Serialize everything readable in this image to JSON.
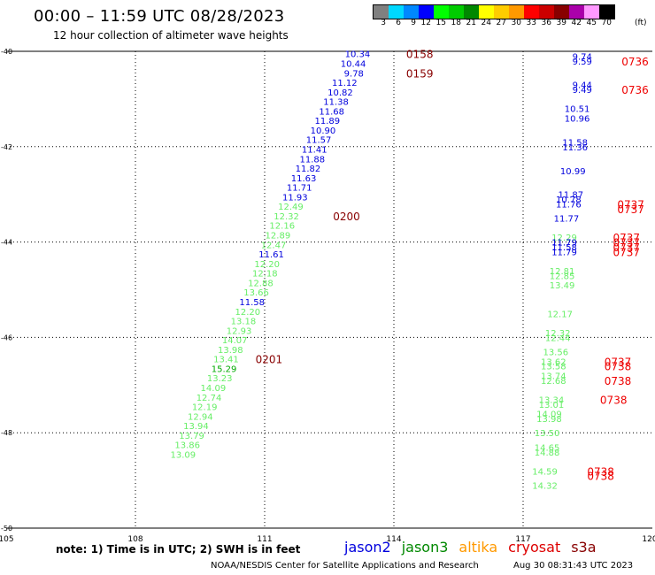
{
  "header": {
    "title": "00:00 – 11:59 UTC 08/28/2023",
    "subtitle": "12 hour collection of altimeter wave heights"
  },
  "colorbar": {
    "unit": "(ft)",
    "labels": [
      "3",
      "6",
      "9",
      "12",
      "15",
      "18",
      "21",
      "24",
      "27",
      "30",
      "33",
      "36",
      "39",
      "42",
      "45",
      "70"
    ],
    "colors": [
      "#808080",
      "#00d8ff",
      "#0088ff",
      "#0000ff",
      "#00ff00",
      "#00cc00",
      "#008800",
      "#ffff00",
      "#ffcc00",
      "#ff9900",
      "#ff0000",
      "#cc0000",
      "#880000",
      "#aa00aa",
      "#ff99ff",
      "#000000"
    ]
  },
  "footer": {
    "note": "note:  1) Time is in UTC; 2) SWH is in feet",
    "credit": "NOAA/NESDIS Center for Satellite Applications and Research",
    "created": "Aug 30 08:31:43 UTC 2023"
  },
  "legend": [
    {
      "name": "jason2",
      "color": "#0000dd"
    },
    {
      "name": "jason3",
      "color": "#008800"
    },
    {
      "name": "altika",
      "color": "#ff9900"
    },
    {
      "name": "cryosat",
      "color": "#dd0000"
    },
    {
      "name": "s3a",
      "color": "#880000"
    }
  ],
  "chart_data": {
    "type": "scatter",
    "x_ticks": [
      "105",
      "108",
      "111",
      "114",
      "117",
      "120"
    ],
    "y_ticks": [
      "-40",
      "-42",
      "-44",
      "-46",
      "-48",
      "-50"
    ],
    "xlim": [
      105,
      120
    ],
    "ylim": [
      -50,
      -40
    ],
    "grid": true,
    "series": [
      {
        "name": "swh_track1",
        "points": [
          {
            "x": 113.45,
            "y": -40.05,
            "label": "10.34",
            "color": "#0000dd"
          },
          {
            "x": 113.35,
            "y": -40.25,
            "label": "10.44",
            "color": "#0000dd"
          },
          {
            "x": 113.3,
            "y": -40.45,
            "label": "9.78",
            "color": "#0000dd"
          },
          {
            "x": 113.15,
            "y": -40.65,
            "label": "11.12",
            "color": "#0000dd"
          },
          {
            "x": 113.05,
            "y": -40.85,
            "label": "10.82",
            "color": "#0000dd"
          },
          {
            "x": 112.95,
            "y": -41.05,
            "label": "11.38",
            "color": "#0000dd"
          },
          {
            "x": 112.85,
            "y": -41.25,
            "label": "11.68",
            "color": "#0000dd"
          },
          {
            "x": 112.75,
            "y": -41.45,
            "label": "11.89",
            "color": "#0000dd"
          },
          {
            "x": 112.65,
            "y": -41.65,
            "label": "10.90",
            "color": "#0000dd"
          },
          {
            "x": 112.55,
            "y": -41.85,
            "label": "11.57",
            "color": "#0000dd"
          },
          {
            "x": 112.45,
            "y": -42.05,
            "label": "11.41",
            "color": "#0000dd"
          },
          {
            "x": 112.4,
            "y": -42.25,
            "label": "11.88",
            "color": "#0000dd"
          },
          {
            "x": 112.3,
            "y": -42.45,
            "label": "11.82",
            "color": "#0000dd"
          },
          {
            "x": 112.2,
            "y": -42.65,
            "label": "11.63",
            "color": "#0000dd"
          },
          {
            "x": 112.1,
            "y": -42.85,
            "label": "11.71",
            "color": "#0000dd"
          },
          {
            "x": 112.0,
            "y": -43.05,
            "label": "11.93",
            "color": "#0000dd"
          },
          {
            "x": 111.9,
            "y": -43.25,
            "label": "12.49",
            "color": "#66ee66"
          },
          {
            "x": 111.8,
            "y": -43.45,
            "label": "12.32",
            "color": "#66ee66"
          },
          {
            "x": 111.7,
            "y": -43.65,
            "label": "12.16",
            "color": "#66ee66"
          },
          {
            "x": 111.6,
            "y": -43.85,
            "label": "12.89",
            "color": "#66ee66"
          },
          {
            "x": 111.5,
            "y": -44.05,
            "label": "12.47",
            "color": "#66ee66"
          },
          {
            "x": 111.45,
            "y": -44.25,
            "label": "11.61",
            "color": "#0000dd"
          },
          {
            "x": 111.35,
            "y": -44.45,
            "label": "12.20",
            "color": "#66ee66"
          },
          {
            "x": 111.3,
            "y": -44.65,
            "label": "12.18",
            "color": "#66ee66"
          },
          {
            "x": 111.2,
            "y": -44.85,
            "label": "12.88",
            "color": "#66ee66"
          },
          {
            "x": 111.1,
            "y": -45.05,
            "label": "13.66",
            "color": "#66ee66"
          },
          {
            "x": 111.0,
            "y": -45.25,
            "label": "11.58",
            "color": "#0000dd"
          },
          {
            "x": 110.9,
            "y": -45.45,
            "label": "12.20",
            "color": "#66ee66"
          },
          {
            "x": 110.8,
            "y": -45.65,
            "label": "13.18",
            "color": "#66ee66"
          },
          {
            "x": 110.7,
            "y": -45.85,
            "label": "12.93",
            "color": "#66ee66"
          },
          {
            "x": 110.6,
            "y": -46.05,
            "label": "14.07",
            "color": "#66ee66"
          },
          {
            "x": 110.5,
            "y": -46.25,
            "label": "13.98",
            "color": "#66ee66"
          },
          {
            "x": 110.4,
            "y": -46.45,
            "label": "13.41",
            "color": "#66ee66"
          },
          {
            "x": 110.35,
            "y": -46.65,
            "label": "15.29",
            "color": "#00aa00"
          },
          {
            "x": 110.25,
            "y": -46.85,
            "label": "13.23",
            "color": "#66ee66"
          },
          {
            "x": 110.1,
            "y": -47.05,
            "label": "14.09",
            "color": "#66ee66"
          },
          {
            "x": 110.0,
            "y": -47.25,
            "label": "12.74",
            "color": "#66ee66"
          },
          {
            "x": 109.9,
            "y": -47.45,
            "label": "12.19",
            "color": "#66ee66"
          },
          {
            "x": 109.8,
            "y": -47.65,
            "label": "12.94",
            "color": "#66ee66"
          },
          {
            "x": 109.7,
            "y": -47.85,
            "label": "13.94",
            "color": "#66ee66"
          },
          {
            "x": 109.6,
            "y": -48.05,
            "label": "13.79",
            "color": "#66ee66"
          },
          {
            "x": 109.5,
            "y": -48.25,
            "label": "13.86",
            "color": "#66ee66"
          },
          {
            "x": 109.4,
            "y": -48.45,
            "label": "13.09",
            "color": "#66ee66"
          }
        ]
      },
      {
        "name": "swh_track2",
        "points": [
          {
            "x": 118.6,
            "y": -40.1,
            "label": "9.74",
            "color": "#0000dd"
          },
          {
            "x": 118.6,
            "y": -40.2,
            "label": "9.59",
            "color": "#0000dd"
          },
          {
            "x": 118.6,
            "y": -40.7,
            "label": "9.44",
            "color": "#0000dd"
          },
          {
            "x": 118.6,
            "y": -40.8,
            "label": "9.49",
            "color": "#0000dd"
          },
          {
            "x": 118.55,
            "y": -41.2,
            "label": "10.51",
            "color": "#0000dd"
          },
          {
            "x": 118.55,
            "y": -41.4,
            "label": "10.96",
            "color": "#0000dd"
          },
          {
            "x": 118.5,
            "y": -41.9,
            "label": "11.58",
            "color": "#0000dd"
          },
          {
            "x": 118.5,
            "y": -42.0,
            "label": "11.36",
            "color": "#0000dd"
          },
          {
            "x": 118.45,
            "y": -42.5,
            "label": "10.99",
            "color": "#0000dd"
          },
          {
            "x": 118.4,
            "y": -43.0,
            "label": "11.87",
            "color": "#0000dd"
          },
          {
            "x": 118.35,
            "y": -43.1,
            "label": "10.78",
            "color": "#0000dd"
          },
          {
            "x": 118.35,
            "y": -43.2,
            "label": "11.76",
            "color": "#0000dd"
          },
          {
            "x": 118.3,
            "y": -43.5,
            "label": "11.77",
            "color": "#0000dd"
          },
          {
            "x": 118.25,
            "y": -43.9,
            "label": "12.29",
            "color": "#66ee66"
          },
          {
            "x": 118.25,
            "y": -44.0,
            "label": "11.79",
            "color": "#0000dd"
          },
          {
            "x": 118.25,
            "y": -44.1,
            "label": "11.58",
            "color": "#0000dd"
          },
          {
            "x": 118.25,
            "y": -44.2,
            "label": "11.79",
            "color": "#0000dd"
          },
          {
            "x": 118.2,
            "y": -44.6,
            "label": "12.81",
            "color": "#66ee66"
          },
          {
            "x": 118.2,
            "y": -44.7,
            "label": "12.85",
            "color": "#66ee66"
          },
          {
            "x": 118.2,
            "y": -44.9,
            "label": "13.49",
            "color": "#66ee66"
          },
          {
            "x": 118.15,
            "y": -45.5,
            "label": "12.17",
            "color": "#66ee66"
          },
          {
            "x": 118.1,
            "y": -45.9,
            "label": "12.32",
            "color": "#66ee66"
          },
          {
            "x": 118.1,
            "y": -46.0,
            "label": "12.44",
            "color": "#66ee66"
          },
          {
            "x": 118.05,
            "y": -46.3,
            "label": "13.56",
            "color": "#66ee66"
          },
          {
            "x": 118.0,
            "y": -46.5,
            "label": "13.62",
            "color": "#66ee66"
          },
          {
            "x": 118.0,
            "y": -46.6,
            "label": "13.58",
            "color": "#66ee66"
          },
          {
            "x": 118.0,
            "y": -46.8,
            "label": "13.74",
            "color": "#66ee66"
          },
          {
            "x": 118.0,
            "y": -46.9,
            "label": "12.68",
            "color": "#66ee66"
          },
          {
            "x": 117.95,
            "y": -47.3,
            "label": "13.34",
            "color": "#66ee66"
          },
          {
            "x": 117.95,
            "y": -47.4,
            "label": "13.01",
            "color": "#66ee66"
          },
          {
            "x": 117.9,
            "y": -47.6,
            "label": "14.09",
            "color": "#66ee66"
          },
          {
            "x": 117.9,
            "y": -47.7,
            "label": "13.98",
            "color": "#66ee66"
          },
          {
            "x": 117.85,
            "y": -48.0,
            "label": "13.50",
            "color": "#66ee66"
          },
          {
            "x": 117.85,
            "y": -48.3,
            "label": "14.65",
            "color": "#66ee66"
          },
          {
            "x": 117.85,
            "y": -48.4,
            "label": "14.88",
            "color": "#66ee66"
          },
          {
            "x": 117.8,
            "y": -48.8,
            "label": "14.59",
            "color": "#66ee66"
          },
          {
            "x": 117.8,
            "y": -49.1,
            "label": "14.32",
            "color": "#66ee66"
          }
        ]
      }
    ],
    "time_labels": [
      {
        "x": 114.6,
        "y": -40.05,
        "label": "0158"
      },
      {
        "x": 114.6,
        "y": -40.45,
        "label": "0159"
      },
      {
        "x": 112.9,
        "y": -43.45,
        "label": "0200"
      },
      {
        "x": 111.1,
        "y": -46.45,
        "label": "0201"
      },
      {
        "x": 119.6,
        "y": -40.2,
        "label": "0736"
      },
      {
        "x": 119.6,
        "y": -40.8,
        "label": "0736"
      },
      {
        "x": 119.5,
        "y": -43.2,
        "label": "0737"
      },
      {
        "x": 119.5,
        "y": -43.3,
        "label": "0737"
      },
      {
        "x": 119.4,
        "y": -43.9,
        "label": "0737"
      },
      {
        "x": 119.4,
        "y": -44.0,
        "label": "0737"
      },
      {
        "x": 119.4,
        "y": -44.1,
        "label": "0737"
      },
      {
        "x": 119.4,
        "y": -44.2,
        "label": "0737"
      },
      {
        "x": 119.2,
        "y": -46.5,
        "label": "0737"
      },
      {
        "x": 119.2,
        "y": -46.6,
        "label": "0738"
      },
      {
        "x": 119.2,
        "y": -46.9,
        "label": "0738"
      },
      {
        "x": 119.1,
        "y": -47.3,
        "label": "0738"
      },
      {
        "x": 118.8,
        "y": -48.8,
        "label": "0738"
      },
      {
        "x": 118.8,
        "y": -48.9,
        "label": "0738"
      }
    ]
  }
}
